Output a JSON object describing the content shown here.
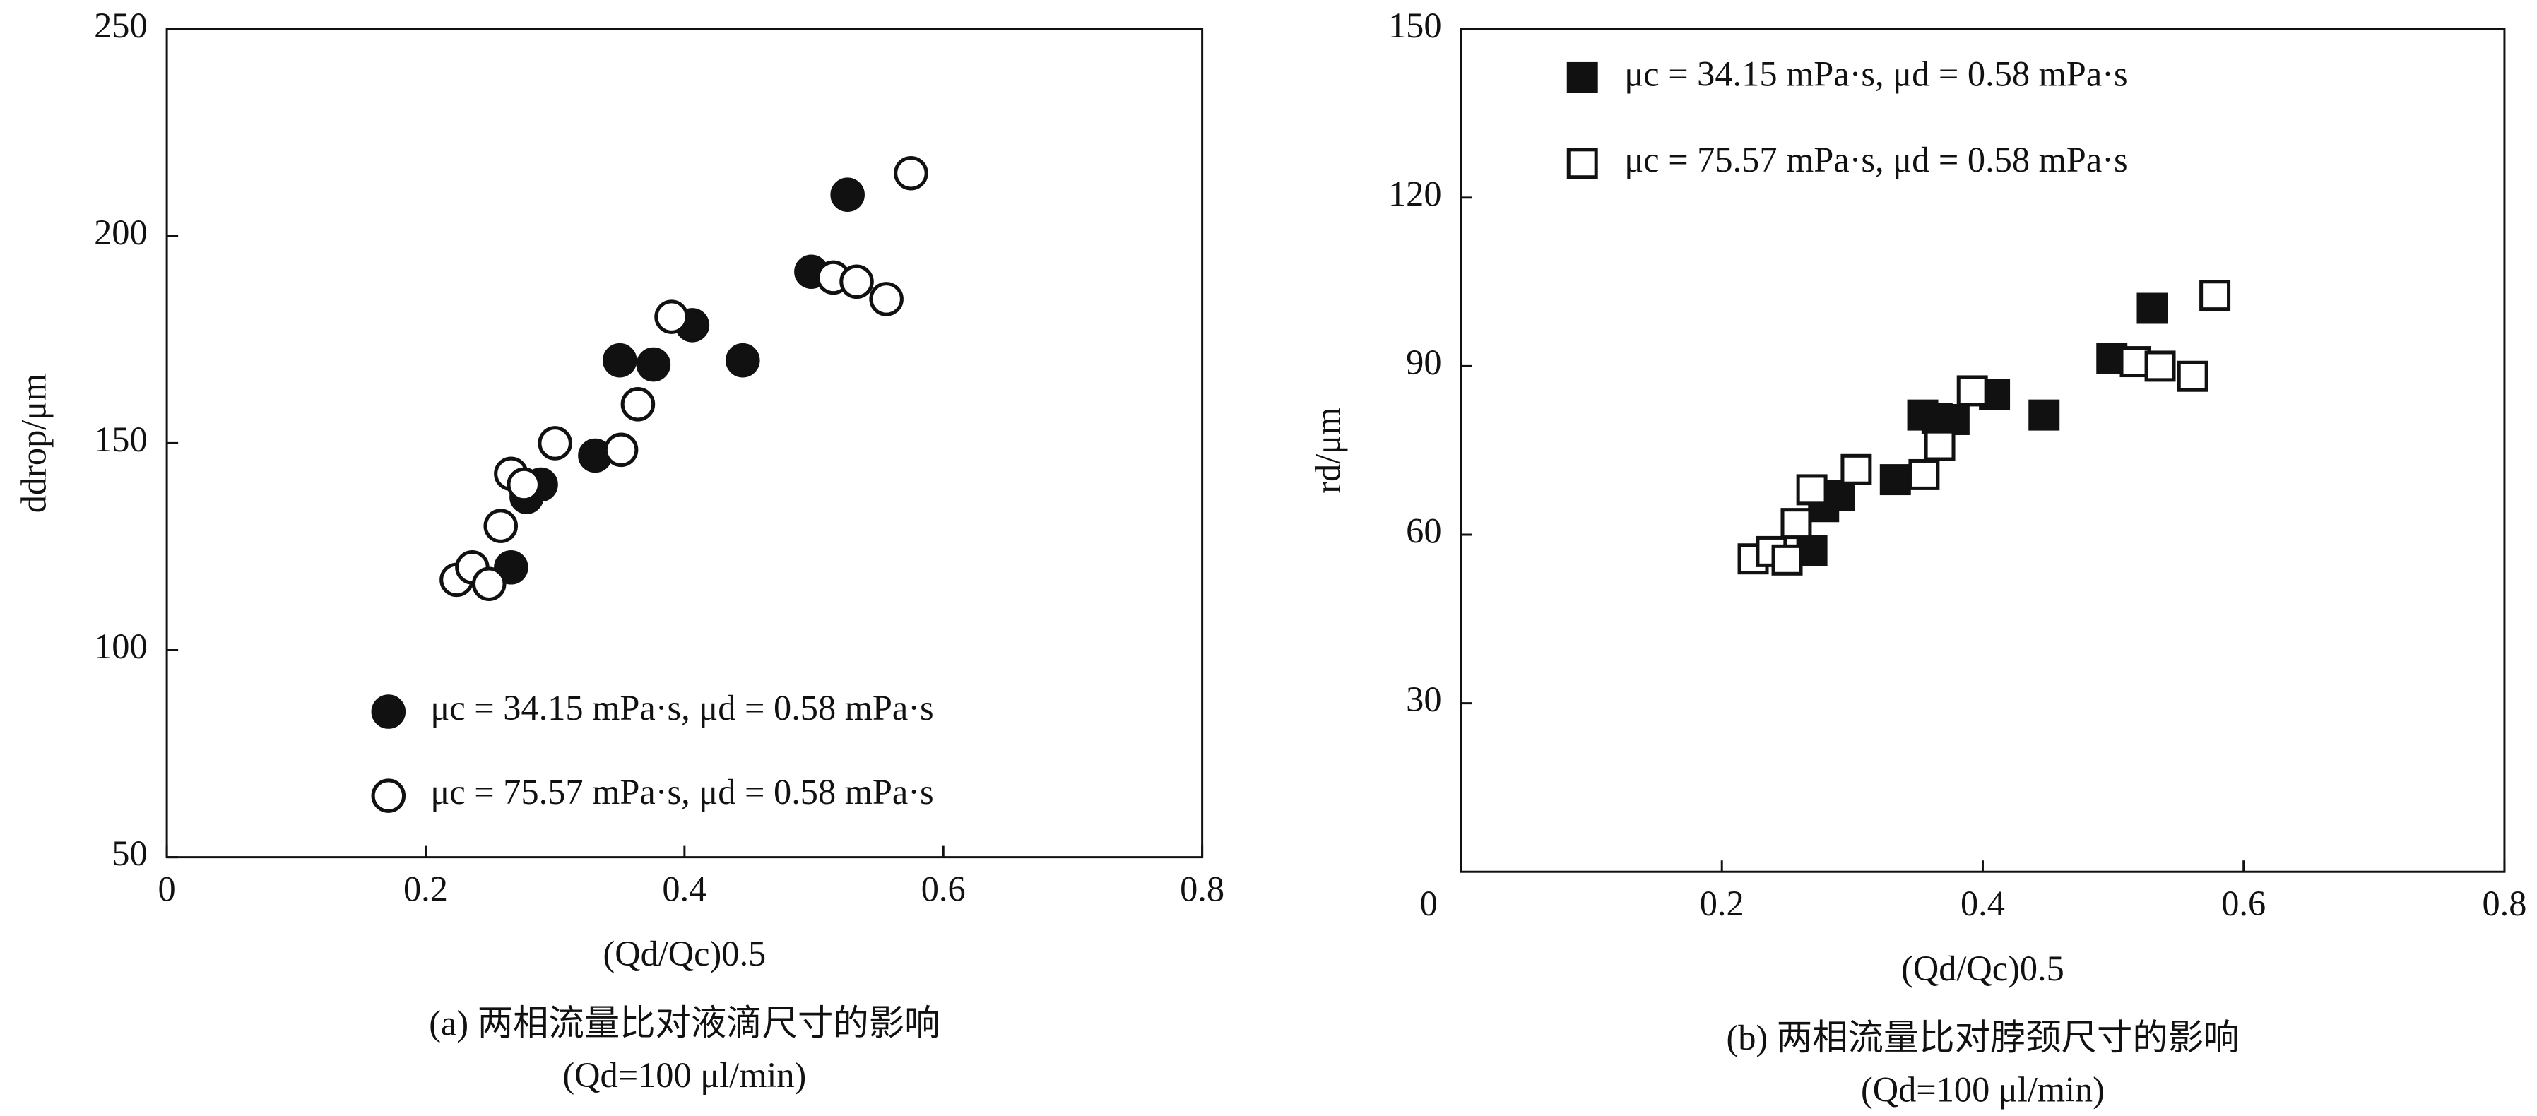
{
  "chart_data": [
    {
      "type": "scatter",
      "marker": "circle",
      "xlabel": "(Qd/Qc)0.5",
      "ylabel": "ddrop/μm",
      "caption": "(a) 两相流量比对液滴尺寸的影响",
      "subcaption": "(Qd=100 μl/min)",
      "xlim": [
        0,
        0.8
      ],
      "xticks": [
        0,
        0.2,
        0.4,
        0.6,
        0.8
      ],
      "ylim": [
        50,
        250
      ],
      "yticks": [
        50,
        100,
        150,
        200,
        250
      ],
      "legend": "lower center",
      "series": [
        {
          "name": "μc = 34.15 mPa·s,  μd = 0.58 mPa·s",
          "color": "#111111",
          "filled": true,
          "x": [
            0.266,
            0.278,
            0.289,
            0.331,
            0.35,
            0.376,
            0.406,
            0.445,
            0.498,
            0.526
          ],
          "values": [
            120,
            137,
            140,
            147,
            170,
            169,
            178.5,
            170,
            191.4,
            210
          ]
        },
        {
          "name": "μc = 75.57 mPa·s,  μd = 0.58 mPa·s",
          "color": "#111111",
          "filled": false,
          "x": [
            0.224,
            0.236,
            0.249,
            0.258,
            0.266,
            0.276,
            0.3,
            0.351,
            0.364,
            0.39,
            0.515,
            0.533,
            0.556,
            0.575
          ],
          "values": [
            117,
            120,
            116,
            130,
            142.6,
            140,
            150,
            148.4,
            159.4,
            180.5,
            190,
            189,
            184.8,
            215.2
          ]
        }
      ]
    },
    {
      "type": "scatter",
      "marker": "square",
      "xlabel": "(Qd/Qc)0.5",
      "ylabel": "rd/μm",
      "caption": "(b) 两相流量比对脖颈尺寸的影响",
      "subcaption": "(Qd=100 μl/min)",
      "xlim": [
        0,
        0.8
      ],
      "xticks": [
        0,
        0.2,
        0.4,
        0.6,
        0.8
      ],
      "ylim": [
        0,
        150
      ],
      "yticks": [
        30,
        60,
        90,
        120,
        150
      ],
      "legend": "upper left",
      "series": [
        {
          "name": "μc = 34.15 mPa·s,  μd = 0.58 mPa·s",
          "color": "#111111",
          "filled": true,
          "x": [
            0.269,
            0.278,
            0.29,
            0.333,
            0.354,
            0.365,
            0.378,
            0.409,
            0.447,
            0.499,
            0.53
          ],
          "values": [
            57.2,
            65,
            67,
            69.8,
            81.3,
            80.7,
            80.5,
            85,
            81.3,
            91.4,
            100.3
          ]
        },
        {
          "name": "μc = 75.57 mPa·s,  μd = 0.58 mPa·s",
          "color": "#111111",
          "filled": false,
          "x": [
            0.224,
            0.238,
            0.25,
            0.257,
            0.269,
            0.303,
            0.355,
            0.367,
            0.392,
            0.517,
            0.536,
            0.561,
            0.578
          ],
          "values": [
            55.7,
            57,
            55.5,
            62,
            68,
            71.6,
            70.7,
            75.9,
            85.6,
            90.8,
            90,
            88.2,
            102.6
          ]
        }
      ]
    }
  ]
}
